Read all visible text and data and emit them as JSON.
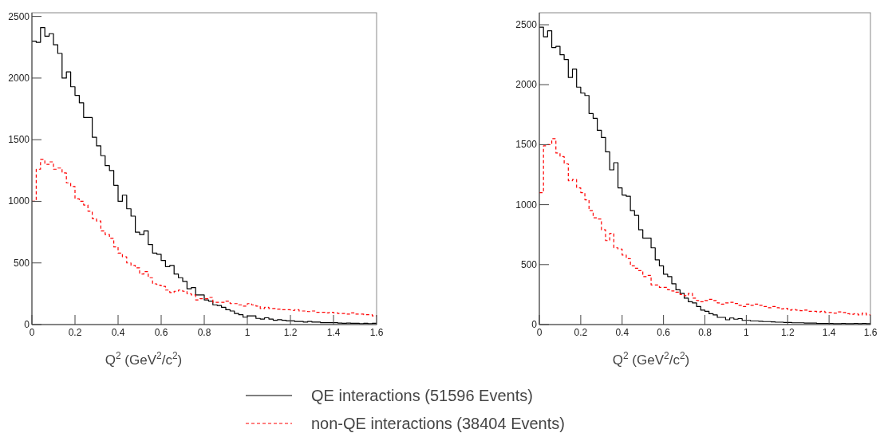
{
  "chart_data": [
    {
      "type": "histogram",
      "xlabel": "Q$^{2}$  (GeV$^{2}$/c$^{2}$)",
      "legend": "bottom",
      "xlim": [
        0,
        1.6
      ],
      "ylim": [
        0,
        2530
      ],
      "xticks": [
        0,
        0.2,
        0.4,
        0.6,
        0.8,
        1,
        1.2,
        1.4,
        1.6
      ],
      "yticks": [
        0,
        500,
        1000,
        1500,
        2000,
        2500
      ],
      "bins": [
        0,
        0.02,
        0.04,
        0.06,
        0.08,
        0.1,
        0.12,
        0.14,
        0.16,
        0.18,
        0.2,
        0.22,
        0.24,
        0.26,
        0.28,
        0.3,
        0.32,
        0.34,
        0.36,
        0.38,
        0.4,
        0.42,
        0.44,
        0.46,
        0.48,
        0.5,
        0.52,
        0.54,
        0.56,
        0.58,
        0.6,
        0.62,
        0.64,
        0.66,
        0.68,
        0.7,
        0.72,
        0.74,
        0.76,
        0.78,
        0.8,
        0.82,
        0.84,
        0.86,
        0.88,
        0.9,
        0.92,
        0.94,
        0.96,
        0.98,
        1,
        1.02,
        1.04,
        1.06,
        1.08,
        1.1,
        1.12,
        1.14,
        1.16,
        1.18,
        1.2,
        1.22,
        1.24,
        1.26,
        1.28,
        1.3,
        1.32,
        1.34,
        1.36,
        1.38,
        1.4,
        1.42,
        1.44,
        1.46,
        1.48,
        1.5,
        1.52,
        1.54,
        1.56,
        1.58,
        1.6
      ],
      "series": [
        {
          "name": "QE interactions (51596 Events)",
          "color": "#000000",
          "line_style": "solid",
          "values": [
            2300,
            2290,
            2410,
            2340,
            2360,
            2270,
            2200,
            2000,
            2050,
            1930,
            1860,
            1800,
            1680,
            1680,
            1520,
            1450,
            1370,
            1290,
            1250,
            1130,
            1000,
            1050,
            940,
            880,
            750,
            730,
            760,
            650,
            580,
            570,
            520,
            470,
            480,
            410,
            380,
            350,
            290,
            300,
            240,
            240,
            200,
            190,
            160,
            155,
            140,
            120,
            110,
            90,
            80,
            60,
            70,
            70,
            50,
            45,
            55,
            45,
            35,
            40,
            35,
            30,
            30,
            25,
            25,
            20,
            25,
            20,
            20,
            15,
            15,
            15,
            15,
            12,
            10,
            12,
            10,
            10,
            8,
            10,
            8,
            10
          ]
        },
        {
          "name": "non-QE interactions (38404 Events)",
          "color": "#ff0000",
          "line_style": "dashed",
          "values": [
            1000,
            1260,
            1340,
            1300,
            1320,
            1260,
            1270,
            1230,
            1150,
            1120,
            1020,
            1000,
            970,
            920,
            860,
            840,
            760,
            730,
            700,
            630,
            580,
            550,
            500,
            480,
            460,
            410,
            430,
            380,
            330,
            320,
            310,
            280,
            260,
            270,
            280,
            270,
            250,
            240,
            200,
            210,
            210,
            220,
            180,
            180,
            180,
            190,
            170,
            170,
            160,
            150,
            170,
            160,
            150,
            130,
            140,
            130,
            130,
            125,
            120,
            120,
            115,
            120,
            110,
            110,
            105,
            110,
            100,
            100,
            95,
            100,
            95,
            90,
            90,
            85,
            95,
            85,
            85,
            80,
            80,
            70
          ]
        }
      ]
    },
    {
      "type": "histogram",
      "xlabel": "Q$^{2}$  (GeV$^{2}$/c$^{2}$)",
      "xlim": [
        0,
        1.6
      ],
      "ylim": [
        0,
        2600
      ],
      "xticks": [
        0,
        0.2,
        0.4,
        0.6,
        0.8,
        1,
        1.2,
        1.4,
        1.6
      ],
      "yticks": [
        0,
        500,
        1000,
        1500,
        2000,
        2500
      ],
      "bins": [
        0,
        0.02,
        0.04,
        0.06,
        0.08,
        0.1,
        0.12,
        0.14,
        0.16,
        0.18,
        0.2,
        0.22,
        0.24,
        0.26,
        0.28,
        0.3,
        0.32,
        0.34,
        0.36,
        0.38,
        0.4,
        0.42,
        0.44,
        0.46,
        0.48,
        0.5,
        0.52,
        0.54,
        0.56,
        0.58,
        0.6,
        0.62,
        0.64,
        0.66,
        0.68,
        0.7,
        0.72,
        0.74,
        0.76,
        0.78,
        0.8,
        0.82,
        0.84,
        0.86,
        0.88,
        0.9,
        0.92,
        0.94,
        0.96,
        0.98,
        1,
        1.02,
        1.04,
        1.06,
        1.08,
        1.1,
        1.12,
        1.14,
        1.16,
        1.18,
        1.2,
        1.22,
        1.24,
        1.26,
        1.28,
        1.3,
        1.32,
        1.34,
        1.36,
        1.38,
        1.4,
        1.42,
        1.44,
        1.46,
        1.48,
        1.5,
        1.52,
        1.54,
        1.56,
        1.58,
        1.6
      ],
      "series": [
        {
          "color": "#000000",
          "line_style": "solid",
          "values": [
            2480,
            2400,
            2450,
            2310,
            2320,
            2250,
            2210,
            2060,
            2130,
            1980,
            1930,
            1910,
            1760,
            1720,
            1620,
            1560,
            1440,
            1290,
            1350,
            1140,
            1080,
            1070,
            950,
            910,
            790,
            720,
            720,
            640,
            540,
            490,
            420,
            400,
            340,
            290,
            260,
            220,
            190,
            180,
            150,
            120,
            110,
            90,
            80,
            60,
            60,
            40,
            55,
            45,
            50,
            35,
            35,
            30,
            30,
            28,
            25,
            25,
            22,
            20,
            20,
            18,
            18,
            15,
            15,
            15,
            12,
            12,
            12,
            10,
            10,
            10,
            10,
            8,
            8,
            10,
            8,
            8,
            10,
            8,
            10,
            8
          ]
        },
        {
          "color": "#ff0000",
          "line_style": "dashed",
          "values": [
            1100,
            1490,
            1500,
            1550,
            1430,
            1400,
            1340,
            1200,
            1210,
            1140,
            1100,
            1040,
            950,
            890,
            880,
            790,
            700,
            760,
            640,
            630,
            580,
            550,
            490,
            470,
            450,
            400,
            410,
            330,
            330,
            310,
            310,
            290,
            280,
            270,
            250,
            240,
            260,
            220,
            200,
            190,
            200,
            210,
            200,
            180,
            170,
            180,
            185,
            175,
            160,
            150,
            170,
            160,
            170,
            160,
            150,
            140,
            150,
            140,
            130,
            135,
            120,
            125,
            120,
            115,
            120,
            110,
            110,
            105,
            110,
            100,
            100,
            95,
            105,
            100,
            90,
            85,
            90,
            80,
            95,
            80
          ]
        }
      ]
    }
  ]
}
